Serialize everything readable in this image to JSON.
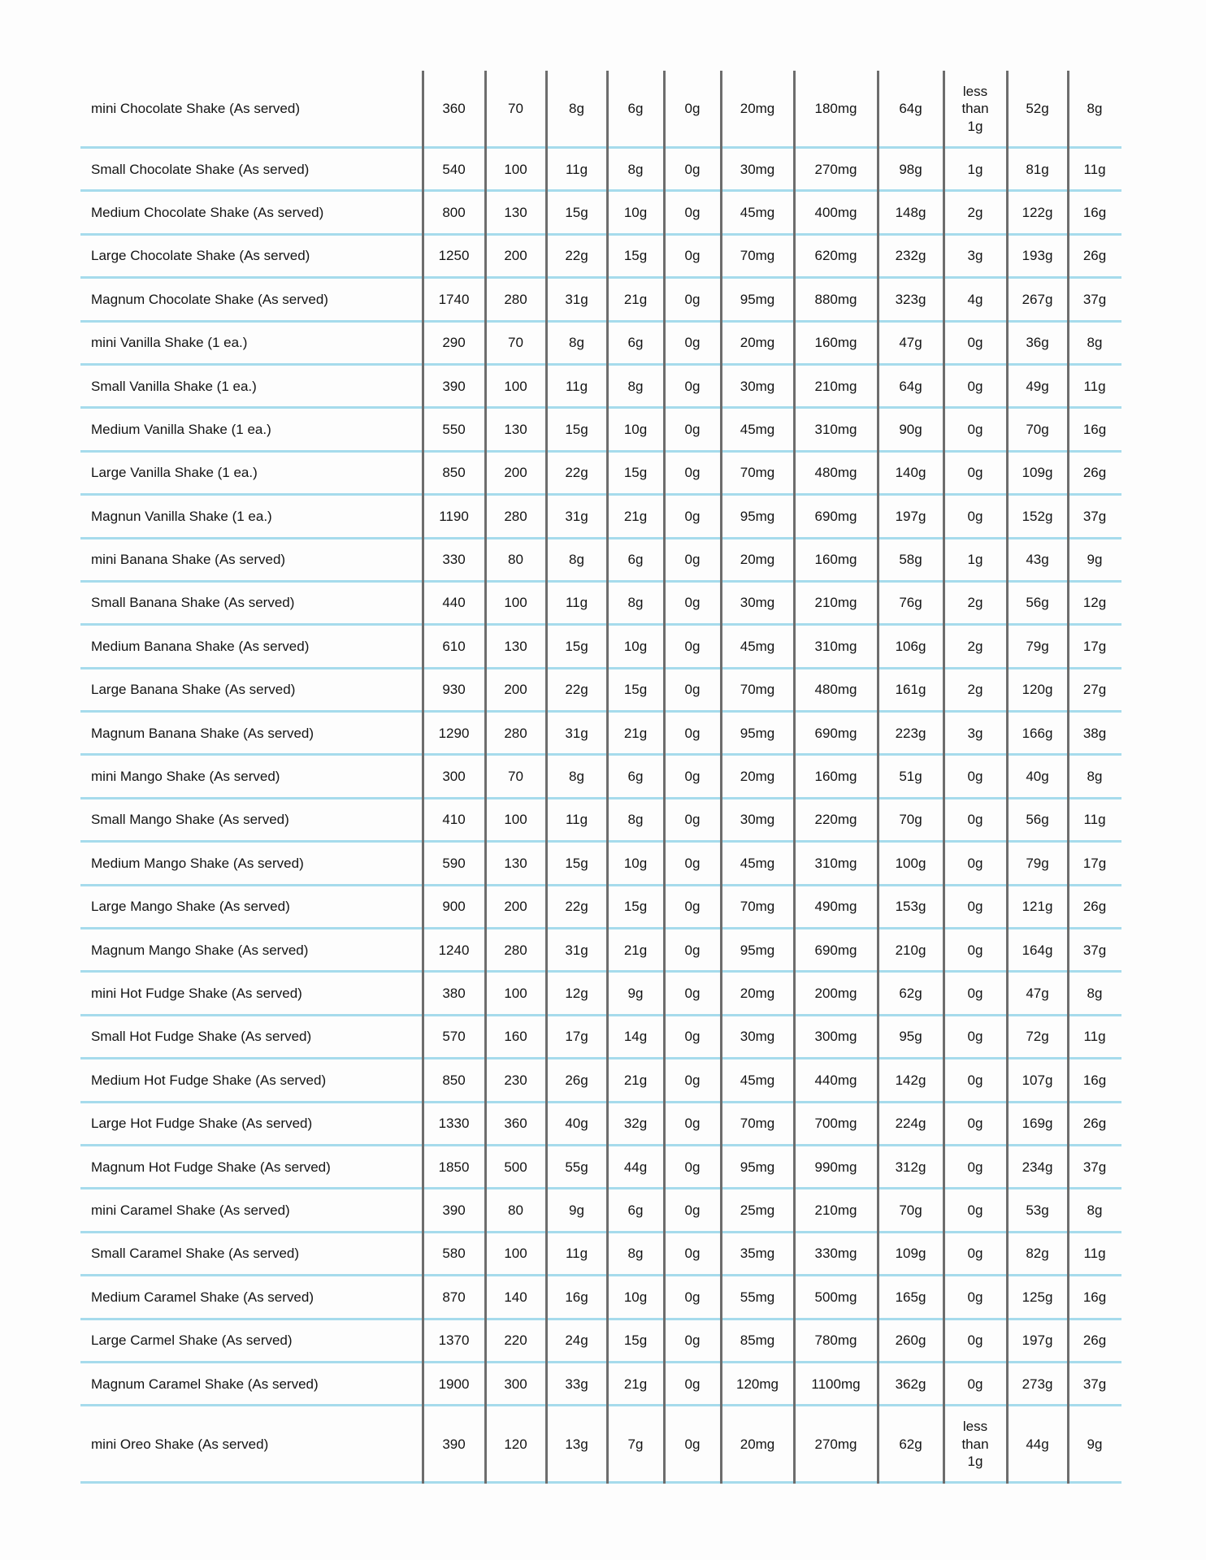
{
  "page": {
    "background_color": "#fdfdfd",
    "row_divider_color": "#a6dbec",
    "column_divider_color": "#6d6d6d",
    "text_color": "#141414"
  },
  "table": {
    "rows": [
      {
        "item": "mini Chocolate Shake (As served)",
        "values": [
          "360",
          "70",
          "8g",
          "6g",
          "0g",
          "20mg",
          "180mg",
          "64g",
          "less than 1g",
          "52g",
          "8g"
        ]
      },
      {
        "item": "Small Chocolate Shake (As served)",
        "values": [
          "540",
          "100",
          "11g",
          "8g",
          "0g",
          "30mg",
          "270mg",
          "98g",
          "1g",
          "81g",
          "11g"
        ]
      },
      {
        "item": "Medium Chocolate Shake (As served)",
        "values": [
          "800",
          "130",
          "15g",
          "10g",
          "0g",
          "45mg",
          "400mg",
          "148g",
          "2g",
          "122g",
          "16g"
        ]
      },
      {
        "item": "Large Chocolate Shake (As served)",
        "values": [
          "1250",
          "200",
          "22g",
          "15g",
          "0g",
          "70mg",
          "620mg",
          "232g",
          "3g",
          "193g",
          "26g"
        ]
      },
      {
        "item": "Magnum Chocolate Shake (As served)",
        "values": [
          "1740",
          "280",
          "31g",
          "21g",
          "0g",
          "95mg",
          "880mg",
          "323g",
          "4g",
          "267g",
          "37g"
        ]
      },
      {
        "item": "mini Vanilla Shake (1 ea.)",
        "values": [
          "290",
          "70",
          "8g",
          "6g",
          "0g",
          "20mg",
          "160mg",
          "47g",
          "0g",
          "36g",
          "8g"
        ]
      },
      {
        "item": "Small Vanilla Shake (1 ea.)",
        "values": [
          "390",
          "100",
          "11g",
          "8g",
          "0g",
          "30mg",
          "210mg",
          "64g",
          "0g",
          "49g",
          "11g"
        ]
      },
      {
        "item": "Medium Vanilla Shake (1 ea.)",
        "values": [
          "550",
          "130",
          "15g",
          "10g",
          "0g",
          "45mg",
          "310mg",
          "90g",
          "0g",
          "70g",
          "16g"
        ]
      },
      {
        "item": "Large Vanilla Shake (1 ea.)",
        "values": [
          "850",
          "200",
          "22g",
          "15g",
          "0g",
          "70mg",
          "480mg",
          "140g",
          "0g",
          "109g",
          "26g"
        ]
      },
      {
        "item": "Magnun Vanilla Shake (1 ea.)",
        "values": [
          "1190",
          "280",
          "31g",
          "21g",
          "0g",
          "95mg",
          "690mg",
          "197g",
          "0g",
          "152g",
          "37g"
        ]
      },
      {
        "item": "mini Banana Shake (As served)",
        "values": [
          "330",
          "80",
          "8g",
          "6g",
          "0g",
          "20mg",
          "160mg",
          "58g",
          "1g",
          "43g",
          "9g"
        ]
      },
      {
        "item": "Small Banana Shake (As served)",
        "values": [
          "440",
          "100",
          "11g",
          "8g",
          "0g",
          "30mg",
          "210mg",
          "76g",
          "2g",
          "56g",
          "12g"
        ]
      },
      {
        "item": "Medium Banana Shake (As served)",
        "values": [
          "610",
          "130",
          "15g",
          "10g",
          "0g",
          "45mg",
          "310mg",
          "106g",
          "2g",
          "79g",
          "17g"
        ]
      },
      {
        "item": "Large Banana Shake (As served)",
        "values": [
          "930",
          "200",
          "22g",
          "15g",
          "0g",
          "70mg",
          "480mg",
          "161g",
          "2g",
          "120g",
          "27g"
        ]
      },
      {
        "item": "Magnum Banana Shake (As served)",
        "values": [
          "1290",
          "280",
          "31g",
          "21g",
          "0g",
          "95mg",
          "690mg",
          "223g",
          "3g",
          "166g",
          "38g"
        ]
      },
      {
        "item": "mini Mango Shake (As served)",
        "values": [
          "300",
          "70",
          "8g",
          "6g",
          "0g",
          "20mg",
          "160mg",
          "51g",
          "0g",
          "40g",
          "8g"
        ]
      },
      {
        "item": "Small Mango Shake (As served)",
        "values": [
          "410",
          "100",
          "11g",
          "8g",
          "0g",
          "30mg",
          "220mg",
          "70g",
          "0g",
          "56g",
          "11g"
        ]
      },
      {
        "item": "Medium Mango Shake (As served)",
        "values": [
          "590",
          "130",
          "15g",
          "10g",
          "0g",
          "45mg",
          "310mg",
          "100g",
          "0g",
          "79g",
          "17g"
        ]
      },
      {
        "item": "Large Mango Shake (As served)",
        "values": [
          "900",
          "200",
          "22g",
          "15g",
          "0g",
          "70mg",
          "490mg",
          "153g",
          "0g",
          "121g",
          "26g"
        ]
      },
      {
        "item": "Magnum Mango Shake (As served)",
        "values": [
          "1240",
          "280",
          "31g",
          "21g",
          "0g",
          "95mg",
          "690mg",
          "210g",
          "0g",
          "164g",
          "37g"
        ]
      },
      {
        "item": "mini Hot Fudge Shake (As served)",
        "values": [
          "380",
          "100",
          "12g",
          "9g",
          "0g",
          "20mg",
          "200mg",
          "62g",
          "0g",
          "47g",
          "8g"
        ]
      },
      {
        "item": "Small Hot Fudge Shake (As served)",
        "values": [
          "570",
          "160",
          "17g",
          "14g",
          "0g",
          "30mg",
          "300mg",
          "95g",
          "0g",
          "72g",
          "11g"
        ]
      },
      {
        "item": "Medium Hot Fudge Shake (As served)",
        "values": [
          "850",
          "230",
          "26g",
          "21g",
          "0g",
          "45mg",
          "440mg",
          "142g",
          "0g",
          "107g",
          "16g"
        ]
      },
      {
        "item": "Large Hot Fudge Shake (As served)",
        "values": [
          "1330",
          "360",
          "40g",
          "32g",
          "0g",
          "70mg",
          "700mg",
          "224g",
          "0g",
          "169g",
          "26g"
        ]
      },
      {
        "item": "Magnum Hot Fudge Shake (As served)",
        "values": [
          "1850",
          "500",
          "55g",
          "44g",
          "0g",
          "95mg",
          "990mg",
          "312g",
          "0g",
          "234g",
          "37g"
        ]
      },
      {
        "item": "mini Caramel Shake (As served)",
        "values": [
          "390",
          "80",
          "9g",
          "6g",
          "0g",
          "25mg",
          "210mg",
          "70g",
          "0g",
          "53g",
          "8g"
        ]
      },
      {
        "item": "Small Caramel Shake (As served)",
        "values": [
          "580",
          "100",
          "11g",
          "8g",
          "0g",
          "35mg",
          "330mg",
          "109g",
          "0g",
          "82g",
          "11g"
        ]
      },
      {
        "item": "Medium Caramel Shake (As served)",
        "values": [
          "870",
          "140",
          "16g",
          "10g",
          "0g",
          "55mg",
          "500mg",
          "165g",
          "0g",
          "125g",
          "16g"
        ]
      },
      {
        "item": "Large Carmel Shake (As served)",
        "values": [
          "1370",
          "220",
          "24g",
          "15g",
          "0g",
          "85mg",
          "780mg",
          "260g",
          "0g",
          "197g",
          "26g"
        ]
      },
      {
        "item": "Magnum Caramel Shake (As served)",
        "values": [
          "1900",
          "300",
          "33g",
          "21g",
          "0g",
          "120mg",
          "1100mg",
          "362g",
          "0g",
          "273g",
          "37g"
        ]
      },
      {
        "item": "mini Oreo Shake (As served)",
        "values": [
          "390",
          "120",
          "13g",
          "7g",
          "0g",
          "20mg",
          "270mg",
          "62g",
          "less than 1g",
          "44g",
          "9g"
        ]
      }
    ]
  }
}
